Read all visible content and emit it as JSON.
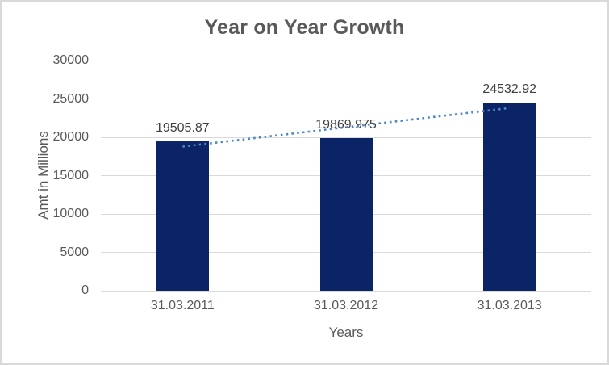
{
  "chart_data": {
    "type": "bar",
    "title": "Year on Year Growth",
    "categories": [
      "31.03.2011",
      "31.03.2012",
      "31.03.2013"
    ],
    "values": [
      19505.87,
      19869.975,
      24532.92
    ],
    "value_labels": [
      "19505.87",
      "19869.975",
      "24532.92"
    ],
    "xlabel": "Years",
    "ylabel": "Amt in Millions",
    "ylim": [
      0,
      30000
    ],
    "yticks": [
      0,
      5000,
      10000,
      15000,
      20000,
      25000,
      30000
    ],
    "grid": true,
    "legend": false,
    "trendline": {
      "type": "linear",
      "style": "dotted"
    },
    "colors": {
      "bar": "#0a2465",
      "trendline": "#4d87c7",
      "gridline": "#d9d9d9",
      "title_text": "#595959",
      "axis_text": "#595959",
      "data_label_text": "#404040",
      "border": "#d9d9d9",
      "background": "#ffffff"
    }
  }
}
